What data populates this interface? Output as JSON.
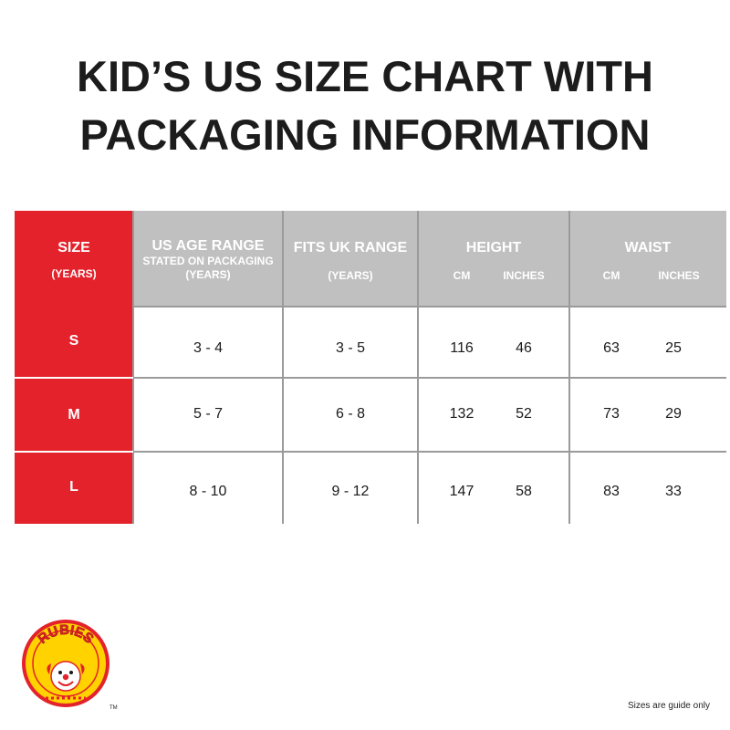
{
  "title": {
    "line1": "KID’S US SIZE CHART WITH",
    "line2": "PACKAGING INFORMATION"
  },
  "table": {
    "headers": {
      "size": {
        "main": "SIZE",
        "sub": "(YEARS)"
      },
      "us_age": {
        "main": "US AGE RANGE",
        "sub1": "STATED ON PACKAGING",
        "sub2": "(YEARS)"
      },
      "uk": {
        "main": "FITS UK RANGE",
        "sub": "(YEARS)"
      },
      "height": {
        "main": "HEIGHT",
        "cm": "CM",
        "inches": "INCHES"
      },
      "waist": {
        "main": "WAIST",
        "cm": "CM",
        "inches": "INCHES"
      }
    },
    "rows": [
      {
        "size": "S",
        "us_age": "3 - 4",
        "uk": "3 - 5",
        "height_cm": "116",
        "height_in": "46",
        "waist_cm": "63",
        "waist_in": "25"
      },
      {
        "size": "M",
        "us_age": "5 - 7",
        "uk": "6 - 8",
        "height_cm": "132",
        "height_in": "52",
        "waist_cm": "73",
        "waist_in": "29"
      },
      {
        "size": "L",
        "us_age": "8 - 10",
        "uk": "9 - 12",
        "height_cm": "147",
        "height_in": "58",
        "waist_cm": "83",
        "waist_in": "33"
      }
    ]
  },
  "logo": {
    "text": "RUBIES",
    "trademark": "TM"
  },
  "footnote": "Sizes are guide only",
  "colors": {
    "red": "#e3222b",
    "header_gray": "#c0c0c0",
    "grid": "#9a9a9a",
    "logo_yellow": "#ffd200"
  }
}
